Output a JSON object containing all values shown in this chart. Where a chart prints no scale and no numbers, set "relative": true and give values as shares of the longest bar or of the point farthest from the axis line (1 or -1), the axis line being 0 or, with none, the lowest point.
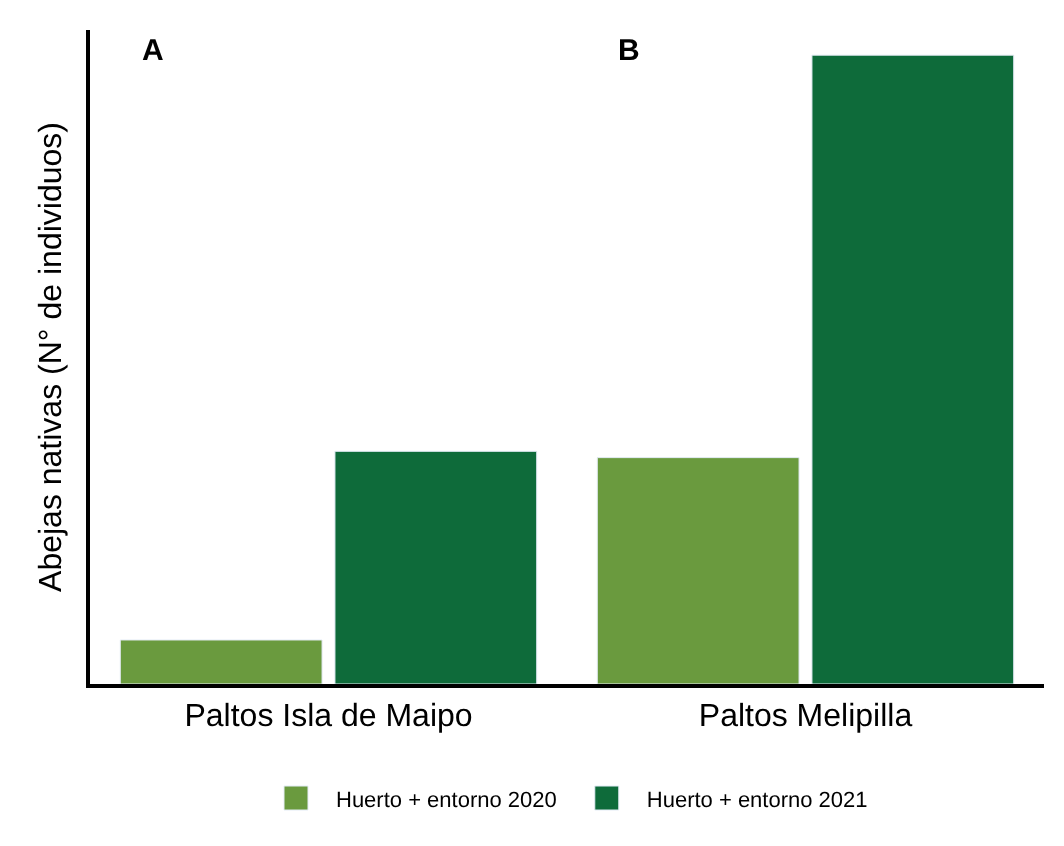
{
  "chart_data": {
    "type": "bar",
    "relative": true,
    "ylabel": "Abejas nativas (N° de individuos)",
    "categories": [
      "Paltos Isla de Maipo",
      "Paltos Melipilla"
    ],
    "series": [
      {
        "name": "Huerto + entorno 2020",
        "color": "#6a9a3e",
        "values": [
          0.07,
          0.36
        ]
      },
      {
        "name": "Huerto + entorno 2021",
        "color": "#0e6b3a",
        "values": [
          0.37,
          1
        ]
      }
    ],
    "annotations": [
      "A",
      "B"
    ],
    "legend": "bottom",
    "tick_labels": "x"
  }
}
